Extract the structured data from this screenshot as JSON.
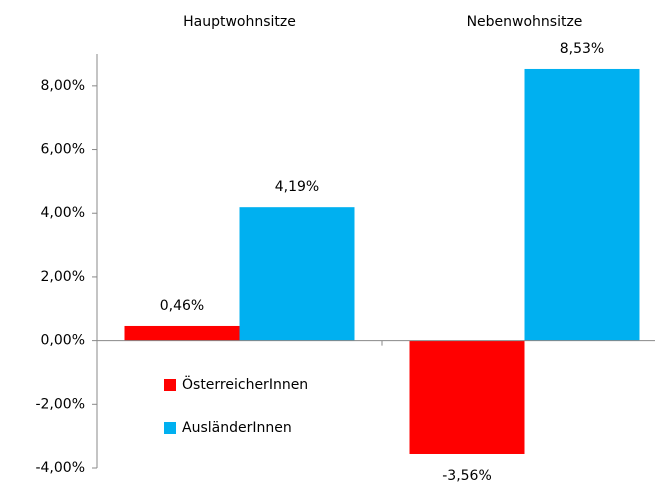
{
  "chart_data": {
    "type": "bar",
    "categories": [
      "Hauptwohnsitze",
      "Nebenwohnsitze"
    ],
    "series": [
      {
        "name": "ÖsterreicherInnen",
        "color": "#ff0000",
        "values": [
          0.46,
          -3.56
        ],
        "value_labels": [
          "0,46%",
          "-3,56%"
        ]
      },
      {
        "name": "AusländerInnen",
        "color": "#00b0f0",
        "values": [
          4.19,
          8.53
        ],
        "value_labels": [
          "4,19%",
          "8,53%"
        ]
      }
    ],
    "ylim": [
      -4,
      9
    ],
    "yticks": [
      {
        "value": -4,
        "label": "-4,00%"
      },
      {
        "value": -2,
        "label": "-2,00%"
      },
      {
        "value": 0,
        "label": "0,00%"
      },
      {
        "value": 2,
        "label": "2,00%"
      },
      {
        "value": 4,
        "label": "4,00%"
      },
      {
        "value": 6,
        "label": "6,00%"
      },
      {
        "value": 8,
        "label": "8,00%"
      }
    ],
    "legend": "lower left"
  }
}
